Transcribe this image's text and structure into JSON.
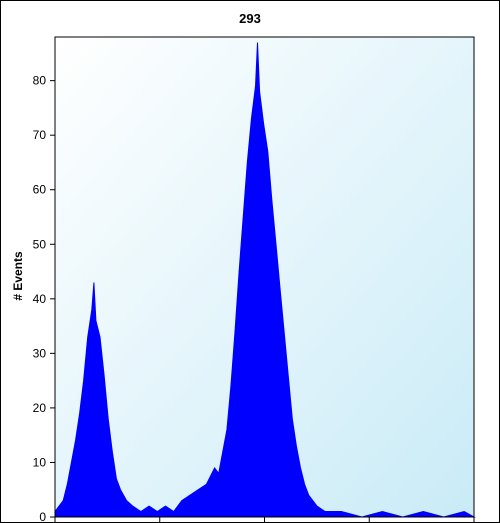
{
  "chart_data": {
    "type": "area",
    "title": "293",
    "xlabel": "",
    "ylabel": "# Events",
    "ylim": [
      0,
      88
    ],
    "yticks": [
      0,
      10,
      20,
      30,
      40,
      50,
      60,
      70,
      80
    ],
    "xlim": [
      0,
      1024
    ],
    "grid": false,
    "legend": "none",
    "series": [
      {
        "values": [
          [
            0,
            1
          ],
          [
            10,
            2
          ],
          [
            20,
            3
          ],
          [
            30,
            6
          ],
          [
            40,
            10
          ],
          [
            50,
            14
          ],
          [
            60,
            19
          ],
          [
            70,
            25
          ],
          [
            80,
            33
          ],
          [
            90,
            38
          ],
          [
            95,
            43
          ],
          [
            100,
            36
          ],
          [
            110,
            33
          ],
          [
            120,
            26
          ],
          [
            130,
            18
          ],
          [
            140,
            12
          ],
          [
            150,
            7
          ],
          [
            160,
            5
          ],
          [
            175,
            3
          ],
          [
            190,
            2
          ],
          [
            210,
            1
          ],
          [
            230,
            2
          ],
          [
            250,
            1
          ],
          [
            270,
            2
          ],
          [
            290,
            1
          ],
          [
            310,
            3
          ],
          [
            330,
            4
          ],
          [
            350,
            5
          ],
          [
            370,
            6
          ],
          [
            390,
            9
          ],
          [
            400,
            8
          ],
          [
            410,
            12
          ],
          [
            420,
            16
          ],
          [
            430,
            24
          ],
          [
            440,
            34
          ],
          [
            450,
            45
          ],
          [
            460,
            55
          ],
          [
            470,
            65
          ],
          [
            480,
            73
          ],
          [
            490,
            79
          ],
          [
            495,
            87
          ],
          [
            500,
            78
          ],
          [
            510,
            72
          ],
          [
            520,
            67
          ],
          [
            530,
            58
          ],
          [
            540,
            50
          ],
          [
            550,
            42
          ],
          [
            560,
            34
          ],
          [
            570,
            26
          ],
          [
            580,
            18
          ],
          [
            590,
            13
          ],
          [
            600,
            9
          ],
          [
            610,
            6
          ],
          [
            620,
            4
          ],
          [
            630,
            3
          ],
          [
            640,
            2
          ],
          [
            660,
            1
          ],
          [
            700,
            1
          ],
          [
            750,
            0
          ],
          [
            800,
            1
          ],
          [
            850,
            0
          ],
          [
            900,
            1
          ],
          [
            950,
            0
          ],
          [
            1000,
            1
          ],
          [
            1024,
            0
          ]
        ],
        "color": "#0000ff"
      }
    ],
    "colors": {
      "background_top_left": "#ffffff",
      "background_bottom_right": "#c9ebf7",
      "fill": "#0000ff"
    }
  }
}
